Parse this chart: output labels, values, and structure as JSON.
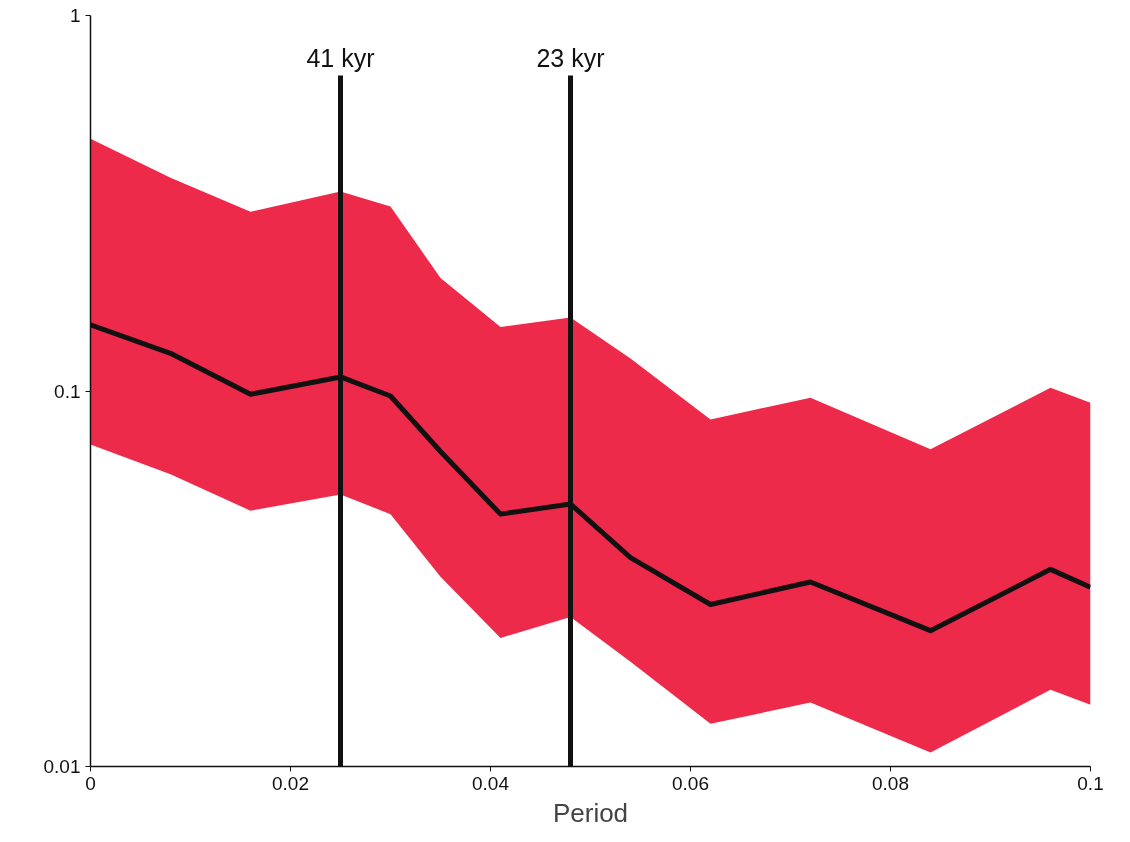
{
  "chart_data": {
    "type": "line",
    "xlabel": "Period",
    "log": "y",
    "grid": false,
    "xlim": [
      0,
      0.1
    ],
    "ylim": [
      0.01,
      1
    ],
    "xticks": [
      0,
      0.02,
      0.04,
      0.06,
      0.08,
      0.1
    ],
    "yticks": [
      0.01,
      0.1,
      1
    ],
    "series": [
      {
        "color": "#111111",
        "x": [
          0,
          0.008,
          0.016,
          0.025,
          0.03,
          0.035,
          0.041,
          0.048,
          0.054,
          0.062,
          0.072,
          0.084,
          0.096,
          0.1
        ],
        "values": [
          0.15,
          0.126,
          0.098,
          0.109,
          0.097,
          0.069,
          0.047,
          0.05,
          0.036,
          0.027,
          0.031,
          0.023,
          0.0335,
          0.03
        ],
        "upper": [
          0.47,
          0.37,
          0.3,
          0.34,
          0.31,
          0.2,
          0.148,
          0.157,
          0.122,
          0.084,
          0.096,
          0.07,
          0.102,
          0.093
        ],
        "lower": [
          0.072,
          0.06,
          0.048,
          0.053,
          0.047,
          0.032,
          0.022,
          0.025,
          0.019,
          0.013,
          0.0148,
          0.0109,
          0.016,
          0.0146
        ]
      }
    ],
    "ref_lines": [
      {
        "axis": "x",
        "value": 0.025,
        "label": "41 kyr",
        "color": "#111111"
      },
      {
        "axis": "x",
        "value": 0.048,
        "label": "23 kyr",
        "color": "#111111"
      }
    ]
  }
}
